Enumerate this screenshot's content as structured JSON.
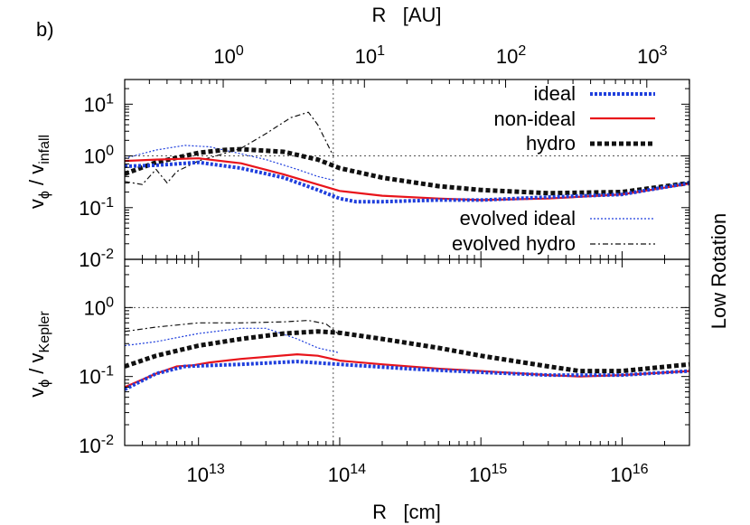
{
  "panel_label": "b)",
  "side_label": "Low Rotation",
  "chart_data": {
    "type": "line",
    "xscale": "log",
    "xlim": [
      3000000000000.0,
      3e+16
    ],
    "xlabel_bottom": "R   [cm]",
    "xticks_bottom": [
      {
        "value": 10000000000000.0,
        "base": "10",
        "exp": "13"
      },
      {
        "value": 100000000000000.0,
        "base": "10",
        "exp": "14"
      },
      {
        "value": 1000000000000000.0,
        "base": "10",
        "exp": "15"
      },
      {
        "value": 1e+16,
        "base": "10",
        "exp": "16"
      }
    ],
    "xlabel_top": "R   [AU]",
    "xticks_top": [
      {
        "au": 1,
        "value": 14960000000000.0,
        "base": "10",
        "exp": "0"
      },
      {
        "au": 10,
        "value": 149600000000000.0,
        "base": "10",
        "exp": "1"
      },
      {
        "au": 100,
        "value": 1496000000000000.0,
        "base": "10",
        "exp": "2"
      },
      {
        "au": 1000,
        "value": 1.496e+16,
        "base": "10",
        "exp": "3"
      }
    ],
    "vline_x": 90000000000000.0,
    "legend": [
      {
        "key": "ideal",
        "label": "ideal",
        "color": "#1f3fdd",
        "style": "thick-dotted"
      },
      {
        "key": "nonideal",
        "label": "non-ideal",
        "color": "#e8141b",
        "style": "solid"
      },
      {
        "key": "hydro",
        "label": "hydro",
        "color": "#111111",
        "style": "thick-dashed"
      },
      {
        "key": "evolved_ideal",
        "label": "evolved ideal",
        "color": "#1f3fdd",
        "style": "thin-dotted"
      },
      {
        "key": "evolved_hydro",
        "label": "evolved hydro",
        "color": "#111111",
        "style": "thin-dash-dot"
      }
    ],
    "panels": [
      {
        "ylabel": "v",
        "ylabel_sub1": "ϕ",
        "ylabel_mid": " / v",
        "ylabel_sub2": "infall",
        "yscale": "log",
        "ylim": [
          0.01,
          30
        ],
        "hline_y": 1,
        "yticks": [
          {
            "value": 0.01,
            "base": "10",
            "exp": "-2"
          },
          {
            "value": 0.1,
            "base": "10",
            "exp": "-1"
          },
          {
            "value": 1,
            "base": "10",
            "exp": "0"
          },
          {
            "value": 10,
            "base": "10",
            "exp": "1"
          }
        ],
        "series": {
          "ideal": [
            [
              3000000000000.0,
              0.63
            ],
            [
              5000000000000.0,
              0.66
            ],
            [
              10000000000000.0,
              0.75
            ],
            [
              20000000000000.0,
              0.58
            ],
            [
              40000000000000.0,
              0.38
            ],
            [
              70000000000000.0,
              0.22
            ],
            [
              100000000000000.0,
              0.15
            ],
            [
              130000000000000.0,
              0.13
            ],
            [
              200000000000000.0,
              0.13
            ],
            [
              500000000000000.0,
              0.14
            ],
            [
              1000000000000000.0,
              0.14
            ],
            [
              3000000000000000.0,
              0.16
            ],
            [
              1e+16,
              0.18
            ],
            [
              3e+16,
              0.3
            ]
          ],
          "nonideal": [
            [
              3000000000000.0,
              0.8
            ],
            [
              5000000000000.0,
              0.85
            ],
            [
              10000000000000.0,
              0.9
            ],
            [
              20000000000000.0,
              0.72
            ],
            [
              40000000000000.0,
              0.44
            ],
            [
              70000000000000.0,
              0.28
            ],
            [
              100000000000000.0,
              0.21
            ],
            [
              200000000000000.0,
              0.17
            ],
            [
              500000000000000.0,
              0.15
            ],
            [
              1000000000000000.0,
              0.14
            ],
            [
              3000000000000000.0,
              0.15
            ],
            [
              1e+16,
              0.18
            ],
            [
              3e+16,
              0.29
            ]
          ],
          "hydro": [
            [
              3000000000000.0,
              0.45
            ],
            [
              5000000000000.0,
              0.75
            ],
            [
              10000000000000.0,
              1.15
            ],
            [
              15000000000000.0,
              1.3
            ],
            [
              20000000000000.0,
              1.35
            ],
            [
              40000000000000.0,
              1.2
            ],
            [
              70000000000000.0,
              0.85
            ],
            [
              100000000000000.0,
              0.58
            ],
            [
              200000000000000.0,
              0.38
            ],
            [
              500000000000000.0,
              0.26
            ],
            [
              1000000000000000.0,
              0.22
            ],
            [
              3000000000000000.0,
              0.19
            ],
            [
              1e+16,
              0.2
            ],
            [
              3e+16,
              0.3
            ]
          ],
          "evolved_ideal": [
            [
              3000000000000.0,
              0.9
            ],
            [
              5000000000000.0,
              1.3
            ],
            [
              8000000000000.0,
              1.6
            ],
            [
              12000000000000.0,
              1.5
            ],
            [
              20000000000000.0,
              1.1
            ],
            [
              30000000000000.0,
              0.85
            ],
            [
              50000000000000.0,
              0.55
            ],
            [
              70000000000000.0,
              0.4
            ],
            [
              90000000000000.0,
              0.34
            ]
          ],
          "evolved_hydro": [
            [
              3000000000000.0,
              0.32
            ],
            [
              4000000000000.0,
              0.28
            ],
            [
              5000000000000.0,
              0.55
            ],
            [
              6000000000000.0,
              0.3
            ],
            [
              7000000000000.0,
              0.5
            ],
            [
              10000000000000.0,
              0.8
            ],
            [
              15000000000000.0,
              1.1
            ],
            [
              20000000000000.0,
              1.4
            ],
            [
              30000000000000.0,
              2.7
            ],
            [
              45000000000000.0,
              5.5
            ],
            [
              60000000000000.0,
              7.0
            ],
            [
              70000000000000.0,
              4.0
            ],
            [
              90000000000000.0,
              1.0
            ]
          ]
        }
      },
      {
        "ylabel": "v",
        "ylabel_sub1": "ϕ",
        "ylabel_mid": " / v",
        "ylabel_sub2": "Kepler",
        "yscale": "log",
        "ylim": [
          0.01,
          5
        ],
        "hline_y": 1,
        "yticks": [
          {
            "value": 0.01,
            "base": "10",
            "exp": "-2"
          },
          {
            "value": 0.1,
            "base": "10",
            "exp": "-1"
          },
          {
            "value": 1,
            "base": "10",
            "exp": "0"
          }
        ],
        "series": {
          "ideal": [
            [
              3000000000000.0,
              0.065
            ],
            [
              5000000000000.0,
              0.11
            ],
            [
              8000000000000.0,
              0.14
            ],
            [
              12000000000000.0,
              0.145
            ],
            [
              20000000000000.0,
              0.15
            ],
            [
              50000000000000.0,
              0.165
            ],
            [
              100000000000000.0,
              0.15
            ],
            [
              300000000000000.0,
              0.13
            ],
            [
              1000000000000000.0,
              0.115
            ],
            [
              3000000000000000.0,
              0.105
            ],
            [
              1e+16,
              0.105
            ],
            [
              3e+16,
              0.12
            ]
          ],
          "nonideal": [
            [
              3000000000000.0,
              0.07
            ],
            [
              5000000000000.0,
              0.11
            ],
            [
              7000000000000.0,
              0.14
            ],
            [
              9000000000000.0,
              0.145
            ],
            [
              12000000000000.0,
              0.16
            ],
            [
              20000000000000.0,
              0.18
            ],
            [
              50000000000000.0,
              0.21
            ],
            [
              70000000000000.0,
              0.2
            ],
            [
              100000000000000.0,
              0.17
            ],
            [
              200000000000000.0,
              0.15
            ],
            [
              500000000000000.0,
              0.13
            ],
            [
              1000000000000000.0,
              0.12
            ],
            [
              3000000000000000.0,
              0.105
            ],
            [
              5000000000000000.0,
              0.1
            ],
            [
              1e+16,
              0.105
            ],
            [
              3e+16,
              0.12
            ]
          ],
          "hydro": [
            [
              3000000000000.0,
              0.14
            ],
            [
              5000000000000.0,
              0.2
            ],
            [
              10000000000000.0,
              0.28
            ],
            [
              20000000000000.0,
              0.35
            ],
            [
              40000000000000.0,
              0.42
            ],
            [
              70000000000000.0,
              0.45
            ],
            [
              100000000000000.0,
              0.43
            ],
            [
              200000000000000.0,
              0.35
            ],
            [
              500000000000000.0,
              0.26
            ],
            [
              1000000000000000.0,
              0.2
            ],
            [
              3000000000000000.0,
              0.14
            ],
            [
              5000000000000000.0,
              0.12
            ],
            [
              1e+16,
              0.12
            ],
            [
              3e+16,
              0.15
            ]
          ],
          "evolved_ideal": [
            [
              3000000000000.0,
              0.28
            ],
            [
              5000000000000.0,
              0.32
            ],
            [
              10000000000000.0,
              0.42
            ],
            [
              20000000000000.0,
              0.5
            ],
            [
              30000000000000.0,
              0.5
            ],
            [
              50000000000000.0,
              0.35
            ],
            [
              70000000000000.0,
              0.26
            ],
            [
              100000000000000.0,
              0.22
            ]
          ],
          "evolved_hydro": [
            [
              3000000000000.0,
              0.45
            ],
            [
              5000000000000.0,
              0.52
            ],
            [
              10000000000000.0,
              0.6
            ],
            [
              20000000000000.0,
              0.6
            ],
            [
              40000000000000.0,
              0.62
            ],
            [
              60000000000000.0,
              0.65
            ],
            [
              80000000000000.0,
              0.58
            ],
            [
              100000000000000.0,
              0.4
            ]
          ]
        }
      }
    ]
  }
}
